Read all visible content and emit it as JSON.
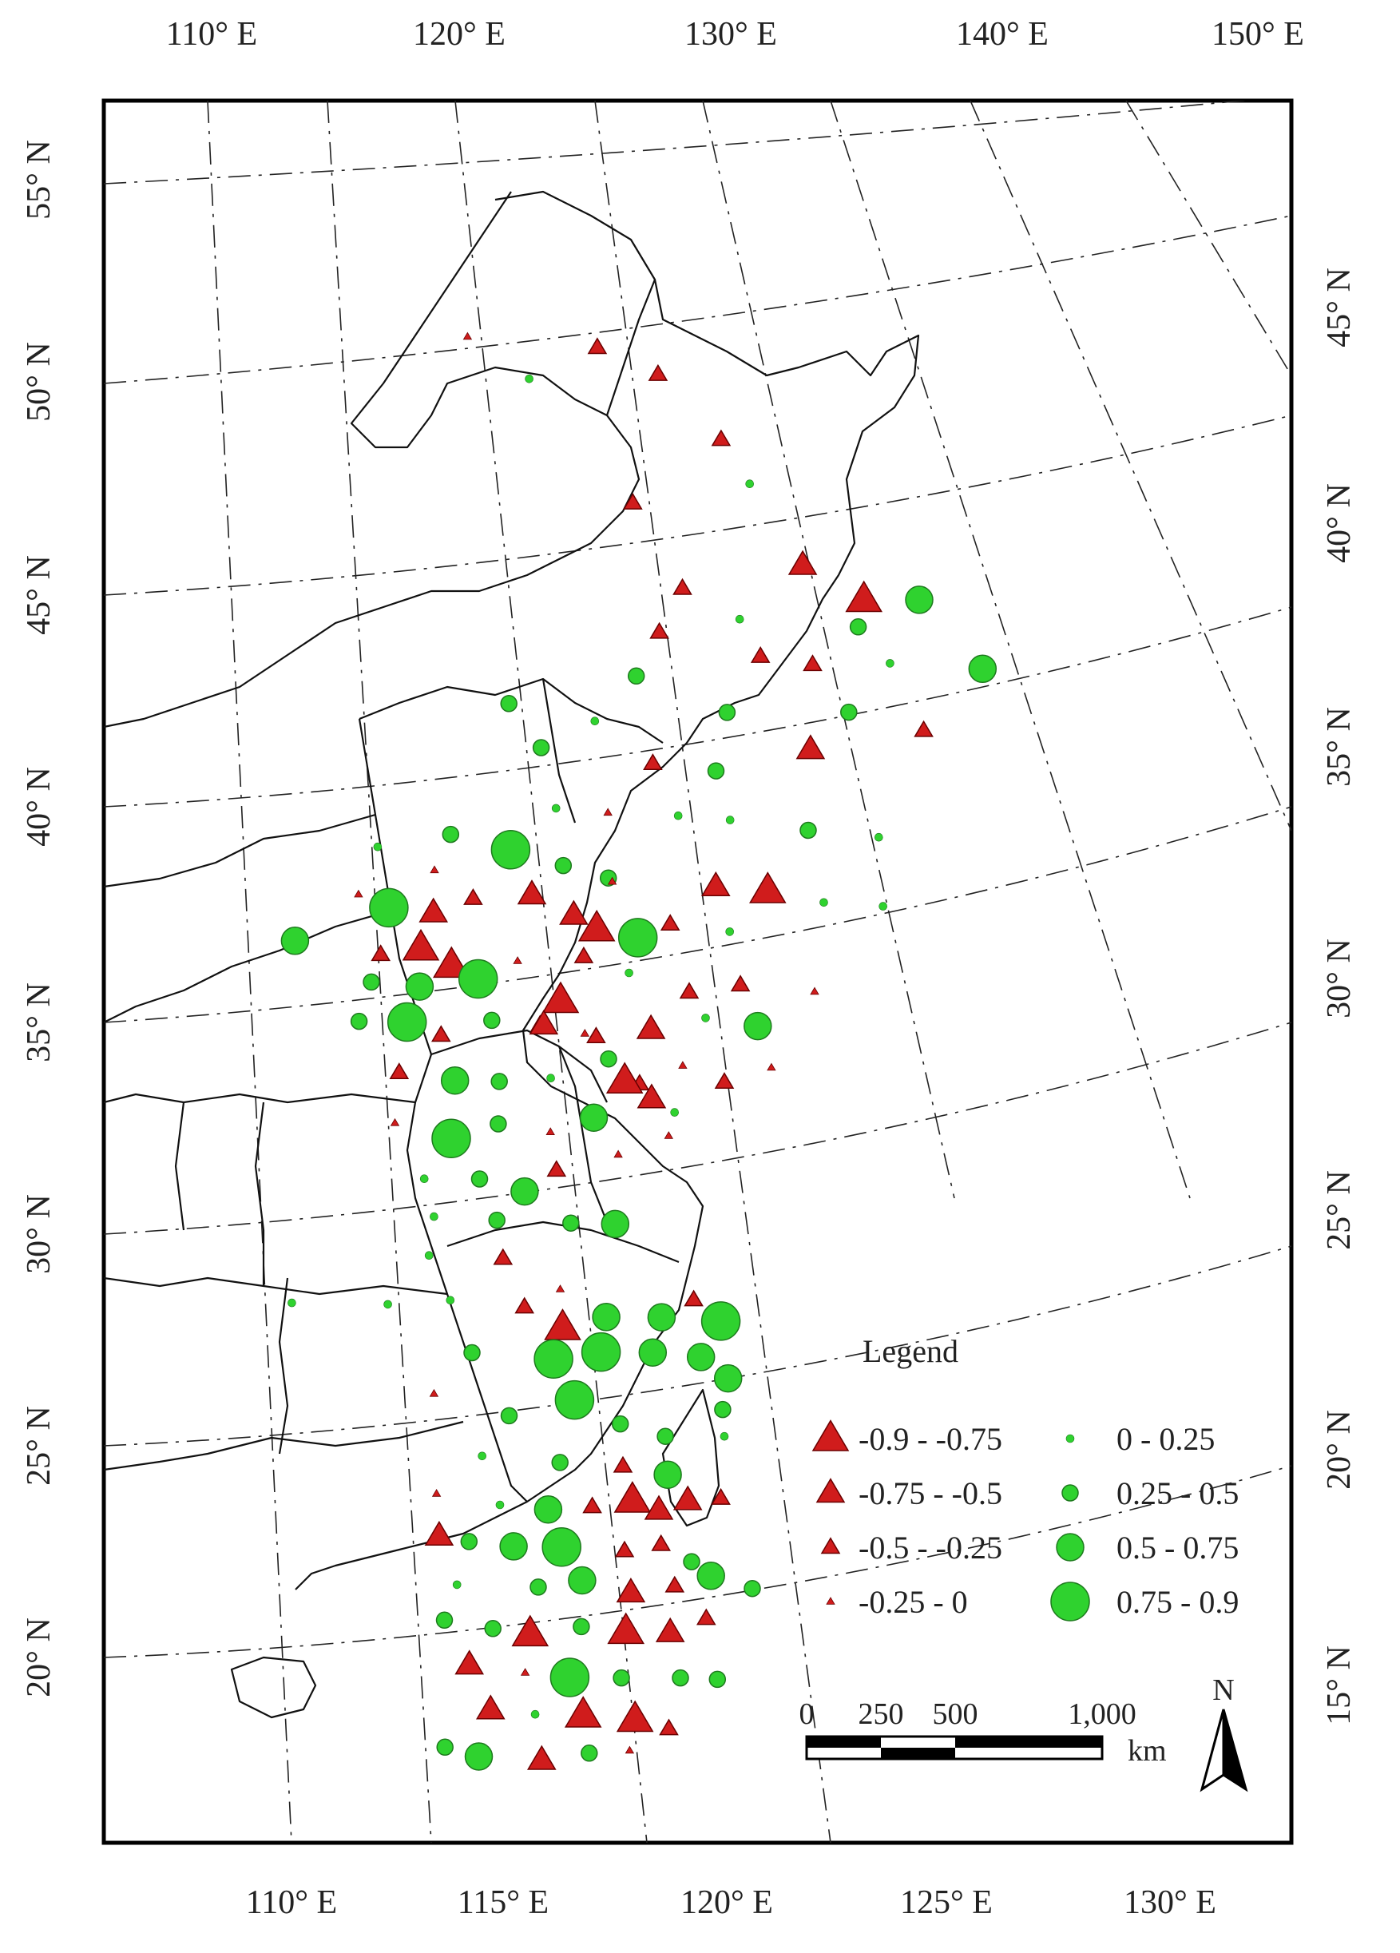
{
  "map": {
    "top_axis_labels": [
      "110° E",
      "120° E",
      "130° E",
      "140° E",
      "150° E"
    ],
    "bottom_axis_labels": [
      "110° E",
      "115° E",
      "120° E",
      "125° E",
      "130° E"
    ],
    "left_axis_labels": [
      "55° N",
      "50° N",
      "45° N",
      "40° N",
      "35° N",
      "30° N",
      "25° N",
      "20° N"
    ],
    "right_axis_labels": [
      "45° N",
      "40° N",
      "35° N",
      "30° N",
      "25° N",
      "20° N",
      "15° N"
    ]
  },
  "legend": {
    "title": "Legend",
    "negative_classes": [
      {
        "label": "-0.9 - -0.75",
        "size": "xl"
      },
      {
        "label": "-0.75 - -0.5",
        "size": "l"
      },
      {
        "label": "-0.5 - -0.25",
        "size": "m"
      },
      {
        "label": "-0.25 - 0",
        "size": "s"
      }
    ],
    "positive_classes": [
      {
        "label": "0 - 0.25",
        "size": "s"
      },
      {
        "label": "0.25 - 0.5",
        "size": "m"
      },
      {
        "label": "0.5 - 0.75",
        "size": "l"
      },
      {
        "label": "0.75 - 0.9",
        "size": "xl"
      }
    ],
    "negative_color": "#d01c1c",
    "positive_color": "#2fd22f"
  },
  "scale_bar": {
    "labels": [
      "0",
      "250",
      "500",
      "1,000"
    ],
    "unit": "km"
  },
  "north_arrow": {
    "label": "N"
  },
  "stations": [
    {
      "lon": 126.6,
      "lat": 52.9,
      "kind": "neg",
      "cls": "m"
    },
    {
      "lon": 124.7,
      "lat": 52.2,
      "kind": "pos",
      "cls": "s"
    },
    {
      "lon": 123.1,
      "lat": 53.4,
      "kind": "neg",
      "cls": "s"
    },
    {
      "lon": 128.2,
      "lat": 52.1,
      "kind": "neg",
      "cls": "m"
    },
    {
      "lon": 127.3,
      "lat": 48.8,
      "kind": "neg",
      "cls": "m"
    },
    {
      "lon": 130.5,
      "lat": 49.1,
      "kind": "pos",
      "cls": "s"
    },
    {
      "lon": 129.8,
      "lat": 50.3,
      "kind": "neg",
      "cls": "m"
    },
    {
      "lon": 131.8,
      "lat": 46.9,
      "kind": "neg",
      "cls": "l"
    },
    {
      "lon": 133.4,
      "lat": 45.9,
      "kind": "neg",
      "cls": "xl"
    },
    {
      "lon": 134.9,
      "lat": 45.8,
      "kind": "pos",
      "cls": "l"
    },
    {
      "lon": 133.2,
      "lat": 45.2,
      "kind": "pos",
      "cls": "m"
    },
    {
      "lon": 134.0,
      "lat": 44.2,
      "kind": "pos",
      "cls": "s"
    },
    {
      "lon": 128.5,
      "lat": 46.5,
      "kind": "neg",
      "cls": "m"
    },
    {
      "lon": 127.8,
      "lat": 45.4,
      "kind": "neg",
      "cls": "m"
    },
    {
      "lon": 130.0,
      "lat": 45.6,
      "kind": "pos",
      "cls": "s"
    },
    {
      "lon": 130.5,
      "lat": 44.6,
      "kind": "neg",
      "cls": "m"
    },
    {
      "lon": 131.9,
      "lat": 44.3,
      "kind": "neg",
      "cls": "m"
    },
    {
      "lon": 136.5,
      "lat": 43.9,
      "kind": "pos",
      "cls": "l"
    },
    {
      "lon": 132.8,
      "lat": 43.0,
      "kind": "pos",
      "cls": "m"
    },
    {
      "lon": 127.1,
      "lat": 44.3,
      "kind": "pos",
      "cls": "m"
    },
    {
      "lon": 125.9,
      "lat": 43.2,
      "kind": "pos",
      "cls": "s"
    },
    {
      "lon": 129.5,
      "lat": 43.2,
      "kind": "pos",
      "cls": "m"
    },
    {
      "lon": 131.7,
      "lat": 42.1,
      "kind": "neg",
      "cls": "l"
    },
    {
      "lon": 123.6,
      "lat": 43.8,
      "kind": "pos",
      "cls": "m"
    },
    {
      "lon": 124.4,
      "lat": 42.6,
      "kind": "pos",
      "cls": "m"
    },
    {
      "lon": 127.4,
      "lat": 42.0,
      "kind": "neg",
      "cls": "m"
    },
    {
      "lon": 129.1,
      "lat": 41.7,
      "kind": "pos",
      "cls": "m"
    },
    {
      "lon": 134.8,
      "lat": 42.4,
      "kind": "neg",
      "cls": "m"
    },
    {
      "lon": 124.7,
      "lat": 41.0,
      "kind": "pos",
      "cls": "s"
    },
    {
      "lon": 126.1,
      "lat": 40.8,
      "kind": "neg",
      "cls": "s"
    },
    {
      "lon": 128.0,
      "lat": 40.6,
      "kind": "pos",
      "cls": "s"
    },
    {
      "lon": 129.4,
      "lat": 40.4,
      "kind": "pos",
      "cls": "s"
    },
    {
      "lon": 131.5,
      "lat": 40.0,
      "kind": "pos",
      "cls": "m"
    },
    {
      "lon": 133.4,
      "lat": 39.7,
      "kind": "pos",
      "cls": "s"
    },
    {
      "lon": 126.0,
      "lat": 39.1,
      "kind": "pos",
      "cls": "m"
    },
    {
      "lon": 128.9,
      "lat": 38.7,
      "kind": "neg",
      "cls": "l"
    },
    {
      "lon": 130.3,
      "lat": 38.5,
      "kind": "neg",
      "cls": "xl"
    },
    {
      "lon": 127.6,
      "lat": 37.8,
      "kind": "neg",
      "cls": "m"
    },
    {
      "lon": 129.2,
      "lat": 37.5,
      "kind": "pos",
      "cls": "s"
    },
    {
      "lon": 131.8,
      "lat": 38.1,
      "kind": "pos",
      "cls": "s"
    },
    {
      "lon": 133.4,
      "lat": 37.9,
      "kind": "pos",
      "cls": "s"
    },
    {
      "lon": 125.2,
      "lat": 37.1,
      "kind": "neg",
      "cls": "m"
    },
    {
      "lon": 126.4,
      "lat": 36.6,
      "kind": "pos",
      "cls": "s"
    },
    {
      "lon": 128.0,
      "lat": 36.0,
      "kind": "neg",
      "cls": "m"
    },
    {
      "lon": 129.4,
      "lat": 36.1,
      "kind": "neg",
      "cls": "m"
    },
    {
      "lon": 131.4,
      "lat": 35.8,
      "kind": "neg",
      "cls": "s"
    },
    {
      "lon": 124.5,
      "lat": 36.0,
      "kind": "neg",
      "cls": "xl"
    },
    {
      "lon": 125.4,
      "lat": 35.0,
      "kind": "neg",
      "cls": "m"
    },
    {
      "lon": 123.9,
      "lat": 35.4,
      "kind": "neg",
      "cls": "m"
    },
    {
      "lon": 126.9,
      "lat": 35.1,
      "kind": "neg",
      "cls": "l"
    },
    {
      "lon": 128.4,
      "lat": 35.3,
      "kind": "pos",
      "cls": "s"
    },
    {
      "lon": 129.8,
      "lat": 35.0,
      "kind": "pos",
      "cls": "l"
    },
    {
      "lon": 125.7,
      "lat": 34.4,
      "kind": "pos",
      "cls": "m"
    },
    {
      "lon": 126.5,
      "lat": 33.7,
      "kind": "neg",
      "cls": "m"
    },
    {
      "lon": 127.7,
      "lat": 34.1,
      "kind": "neg",
      "cls": "s"
    },
    {
      "lon": 128.8,
      "lat": 33.6,
      "kind": "neg",
      "cls": "m"
    },
    {
      "lon": 130.1,
      "lat": 33.9,
      "kind": "neg",
      "cls": "s"
    },
    {
      "lon": 119.8,
      "lat": 40.3,
      "kind": "pos",
      "cls": "s"
    },
    {
      "lon": 121.8,
      "lat": 40.5,
      "kind": "pos",
      "cls": "m"
    },
    {
      "lon": 123.4,
      "lat": 40.0,
      "kind": "pos",
      "cls": "xl"
    },
    {
      "lon": 123.9,
      "lat": 38.8,
      "kind": "neg",
      "cls": "l"
    },
    {
      "lon": 119.2,
      "lat": 39.1,
      "kind": "neg",
      "cls": "s"
    },
    {
      "lon": 117.4,
      "lat": 38.0,
      "kind": "pos",
      "cls": "l"
    },
    {
      "lon": 120.0,
      "lat": 38.7,
      "kind": "pos",
      "cls": "xl"
    },
    {
      "lon": 121.2,
      "lat": 38.5,
      "kind": "neg",
      "cls": "l"
    },
    {
      "lon": 122.3,
      "lat": 38.8,
      "kind": "neg",
      "cls": "m"
    },
    {
      "lon": 124.8,
      "lat": 39.5,
      "kind": "pos",
      "cls": "m"
    },
    {
      "lon": 126.1,
      "lat": 39.0,
      "kind": "neg",
      "cls": "s"
    },
    {
      "lon": 121.3,
      "lat": 39.6,
      "kind": "neg",
      "cls": "s"
    },
    {
      "lon": 125.0,
      "lat": 38.2,
      "kind": "neg",
      "cls": "l"
    },
    {
      "lon": 125.6,
      "lat": 37.8,
      "kind": "neg",
      "cls": "xl"
    },
    {
      "lon": 126.7,
      "lat": 37.5,
      "kind": "pos",
      "cls": "xl"
    },
    {
      "lon": 120.8,
      "lat": 37.6,
      "kind": "neg",
      "cls": "xl"
    },
    {
      "lon": 121.6,
      "lat": 37.1,
      "kind": "neg",
      "cls": "xl"
    },
    {
      "lon": 119.7,
      "lat": 37.5,
      "kind": "neg",
      "cls": "m"
    },
    {
      "lon": 119.4,
      "lat": 36.8,
      "kind": "pos",
      "cls": "m"
    },
    {
      "lon": 120.7,
      "lat": 36.6,
      "kind": "pos",
      "cls": "l"
    },
    {
      "lon": 122.3,
      "lat": 36.7,
      "kind": "pos",
      "cls": "xl"
    },
    {
      "lon": 123.4,
      "lat": 37.1,
      "kind": "neg",
      "cls": "s"
    },
    {
      "lon": 119.0,
      "lat": 35.8,
      "kind": "pos",
      "cls": "m"
    },
    {
      "lon": 120.3,
      "lat": 35.7,
      "kind": "pos",
      "cls": "xl"
    },
    {
      "lon": 121.2,
      "lat": 35.3,
      "kind": "neg",
      "cls": "m"
    },
    {
      "lon": 122.6,
      "lat": 35.6,
      "kind": "pos",
      "cls": "m"
    },
    {
      "lon": 124.0,
      "lat": 35.4,
      "kind": "neg",
      "cls": "l"
    },
    {
      "lon": 125.1,
      "lat": 35.1,
      "kind": "neg",
      "cls": "s"
    },
    {
      "lon": 120.0,
      "lat": 34.4,
      "kind": "neg",
      "cls": "m"
    },
    {
      "lon": 121.5,
      "lat": 34.1,
      "kind": "pos",
      "cls": "l"
    },
    {
      "lon": 122.7,
      "lat": 34.0,
      "kind": "pos",
      "cls": "m"
    },
    {
      "lon": 124.1,
      "lat": 34.0,
      "kind": "pos",
      "cls": "s"
    },
    {
      "lon": 126.1,
      "lat": 33.8,
      "kind": "neg",
      "cls": "xl"
    },
    {
      "lon": 126.8,
      "lat": 33.3,
      "kind": "neg",
      "cls": "l"
    },
    {
      "lon": 127.4,
      "lat": 32.9,
      "kind": "pos",
      "cls": "s"
    },
    {
      "lon": 119.8,
      "lat": 33.1,
      "kind": "neg",
      "cls": "s"
    },
    {
      "lon": 121.3,
      "lat": 32.6,
      "kind": "pos",
      "cls": "xl"
    },
    {
      "lon": 122.6,
      "lat": 32.9,
      "kind": "pos",
      "cls": "m"
    },
    {
      "lon": 124.0,
      "lat": 32.6,
      "kind": "neg",
      "cls": "s"
    },
    {
      "lon": 125.2,
      "lat": 32.9,
      "kind": "pos",
      "cls": "l"
    },
    {
      "lon": 127.2,
      "lat": 32.3,
      "kind": "neg",
      "cls": "s"
    },
    {
      "lon": 120.5,
      "lat": 31.6,
      "kind": "pos",
      "cls": "s"
    },
    {
      "lon": 122.0,
      "lat": 31.5,
      "kind": "pos",
      "cls": "m"
    },
    {
      "lon": 123.2,
      "lat": 31.1,
      "kind": "pos",
      "cls": "l"
    },
    {
      "lon": 124.1,
      "lat": 31.6,
      "kind": "neg",
      "cls": "m"
    },
    {
      "lon": 125.8,
      "lat": 31.9,
      "kind": "neg",
      "cls": "s"
    },
    {
      "lon": 120.7,
      "lat": 30.6,
      "kind": "pos",
      "cls": "s"
    },
    {
      "lon": 122.4,
      "lat": 30.4,
      "kind": "pos",
      "cls": "m"
    },
    {
      "lon": 124.4,
      "lat": 30.2,
      "kind": "pos",
      "cls": "m"
    },
    {
      "lon": 125.6,
      "lat": 30.1,
      "kind": "pos",
      "cls": "l"
    },
    {
      "lon": 120.5,
      "lat": 29.6,
      "kind": "pos",
      "cls": "s"
    },
    {
      "lon": 122.5,
      "lat": 29.4,
      "kind": "neg",
      "cls": "m"
    },
    {
      "lon": 124.0,
      "lat": 28.5,
      "kind": "neg",
      "cls": "s"
    },
    {
      "lon": 116.7,
      "lat": 28.6,
      "kind": "pos",
      "cls": "s"
    },
    {
      "lon": 119.3,
      "lat": 28.4,
      "kind": "pos",
      "cls": "s"
    },
    {
      "lon": 121.0,
      "lat": 28.4,
      "kind": "pos",
      "cls": "s"
    },
    {
      "lon": 123.0,
      "lat": 28.1,
      "kind": "neg",
      "cls": "m"
    },
    {
      "lon": 124.0,
      "lat": 27.5,
      "kind": "neg",
      "cls": "xl"
    },
    {
      "lon": 125.2,
      "lat": 27.7,
      "kind": "pos",
      "cls": "l"
    },
    {
      "lon": 126.7,
      "lat": 27.6,
      "kind": "pos",
      "cls": "l"
    },
    {
      "lon": 127.6,
      "lat": 28.0,
      "kind": "neg",
      "cls": "m"
    },
    {
      "lon": 128.3,
      "lat": 27.4,
      "kind": "pos",
      "cls": "xl"
    },
    {
      "lon": 121.5,
      "lat": 27.0,
      "kind": "pos",
      "cls": "m"
    },
    {
      "lon": 123.7,
      "lat": 26.7,
      "kind": "pos",
      "cls": "xl"
    },
    {
      "lon": 125.0,
      "lat": 26.8,
      "kind": "pos",
      "cls": "xl"
    },
    {
      "lon": 126.4,
      "lat": 26.7,
      "kind": "pos",
      "cls": "l"
    },
    {
      "lon": 127.7,
      "lat": 26.5,
      "kind": "pos",
      "cls": "l"
    },
    {
      "lon": 128.4,
      "lat": 25.9,
      "kind": "pos",
      "cls": "l"
    },
    {
      "lon": 128.2,
      "lat": 25.1,
      "kind": "pos",
      "cls": "m"
    },
    {
      "lon": 120.4,
      "lat": 26.0,
      "kind": "neg",
      "cls": "s"
    },
    {
      "lon": 122.4,
      "lat": 25.3,
      "kind": "pos",
      "cls": "m"
    },
    {
      "lon": 124.2,
      "lat": 25.6,
      "kind": "pos",
      "cls": "xl"
    },
    {
      "lon": 125.4,
      "lat": 24.9,
      "kind": "pos",
      "cls": "m"
    },
    {
      "lon": 126.6,
      "lat": 24.5,
      "kind": "pos",
      "cls": "m"
    },
    {
      "lon": 128.2,
      "lat": 24.4,
      "kind": "pos",
      "cls": "s"
    },
    {
      "lon": 121.6,
      "lat": 24.3,
      "kind": "pos",
      "cls": "s"
    },
    {
      "lon": 123.7,
      "lat": 24.0,
      "kind": "pos",
      "cls": "m"
    },
    {
      "lon": 125.4,
      "lat": 23.8,
      "kind": "neg",
      "cls": "m"
    },
    {
      "lon": 126.6,
      "lat": 23.5,
      "kind": "pos",
      "cls": "l"
    },
    {
      "lon": 120.3,
      "lat": 23.4,
      "kind": "neg",
      "cls": "s"
    },
    {
      "lon": 122.0,
      "lat": 23.0,
      "kind": "pos",
      "cls": "s"
    },
    {
      "lon": 123.3,
      "lat": 22.8,
      "kind": "pos",
      "cls": "l"
    },
    {
      "lon": 124.5,
      "lat": 22.8,
      "kind": "neg",
      "cls": "m"
    },
    {
      "lon": 125.6,
      "lat": 22.9,
      "kind": "neg",
      "cls": "xl"
    },
    {
      "lon": 126.3,
      "lat": 22.6,
      "kind": "neg",
      "cls": "l"
    },
    {
      "lon": 127.1,
      "lat": 22.8,
      "kind": "neg",
      "cls": "l"
    },
    {
      "lon": 128.0,
      "lat": 22.8,
      "kind": "neg",
      "cls": "m"
    },
    {
      "lon": 120.3,
      "lat": 22.3,
      "kind": "neg",
      "cls": "l"
    },
    {
      "lon": 121.1,
      "lat": 22.1,
      "kind": "pos",
      "cls": "m"
    },
    {
      "lon": 122.3,
      "lat": 21.9,
      "kind": "pos",
      "cls": "l"
    },
    {
      "lon": 123.6,
      "lat": 21.8,
      "kind": "pos",
      "cls": "xl"
    },
    {
      "lon": 125.3,
      "lat": 21.6,
      "kind": "neg",
      "cls": "m"
    },
    {
      "lon": 126.3,
      "lat": 21.7,
      "kind": "neg",
      "cls": "m"
    },
    {
      "lon": 127.1,
      "lat": 21.2,
      "kind": "pos",
      "cls": "m"
    },
    {
      "lon": 120.7,
      "lat": 21.0,
      "kind": "pos",
      "cls": "s"
    },
    {
      "lon": 122.9,
      "lat": 20.8,
      "kind": "pos",
      "cls": "m"
    },
    {
      "lon": 124.1,
      "lat": 20.9,
      "kind": "pos",
      "cls": "l"
    },
    {
      "lon": 125.4,
      "lat": 20.5,
      "kind": "neg",
      "cls": "l"
    },
    {
      "lon": 126.6,
      "lat": 20.6,
      "kind": "neg",
      "cls": "m"
    },
    {
      "lon": 127.6,
      "lat": 20.8,
      "kind": "pos",
      "cls": "l"
    },
    {
      "lon": 128.7,
      "lat": 20.4,
      "kind": "pos",
      "cls": "m"
    },
    {
      "lon": 120.3,
      "lat": 20.1,
      "kind": "pos",
      "cls": "m"
    },
    {
      "lon": 121.6,
      "lat": 19.8,
      "kind": "pos",
      "cls": "m"
    },
    {
      "lon": 122.6,
      "lat": 19.6,
      "kind": "neg",
      "cls": "xl"
    },
    {
      "lon": 124.0,
      "lat": 19.7,
      "kind": "pos",
      "cls": "m"
    },
    {
      "lon": 125.2,
      "lat": 19.5,
      "kind": "neg",
      "cls": "xl"
    },
    {
      "lon": 126.4,
      "lat": 19.4,
      "kind": "neg",
      "cls": "l"
    },
    {
      "lon": 127.4,
      "lat": 19.7,
      "kind": "neg",
      "cls": "m"
    },
    {
      "lon": 120.9,
      "lat": 18.9,
      "kind": "neg",
      "cls": "l"
    },
    {
      "lon": 122.4,
      "lat": 18.6,
      "kind": "neg",
      "cls": "s"
    },
    {
      "lon": 123.6,
      "lat": 18.4,
      "kind": "pos",
      "cls": "xl"
    },
    {
      "lon": 125.0,
      "lat": 18.3,
      "kind": "pos",
      "cls": "m"
    },
    {
      "lon": 126.6,
      "lat": 18.2,
      "kind": "pos",
      "cls": "m"
    },
    {
      "lon": 127.6,
      "lat": 18.1,
      "kind": "pos",
      "cls": "m"
    },
    {
      "lon": 121.4,
      "lat": 17.7,
      "kind": "neg",
      "cls": "l"
    },
    {
      "lon": 122.6,
      "lat": 17.5,
      "kind": "pos",
      "cls": "s"
    },
    {
      "lon": 123.9,
      "lat": 17.4,
      "kind": "neg",
      "cls": "xl"
    },
    {
      "lon": 125.3,
      "lat": 17.2,
      "kind": "neg",
      "cls": "xl"
    },
    {
      "lon": 126.2,
      "lat": 16.9,
      "kind": "neg",
      "cls": "m"
    },
    {
      "lon": 120.1,
      "lat": 16.8,
      "kind": "pos",
      "cls": "m"
    },
    {
      "lon": 121.0,
      "lat": 16.5,
      "kind": "pos",
      "cls": "l"
    },
    {
      "lon": 122.7,
      "lat": 16.3,
      "kind": "neg",
      "cls": "l"
    },
    {
      "lon": 124.0,
      "lat": 16.4,
      "kind": "pos",
      "cls": "m"
    },
    {
      "lon": 125.1,
      "lat": 16.4,
      "kind": "neg",
      "cls": "s"
    }
  ]
}
